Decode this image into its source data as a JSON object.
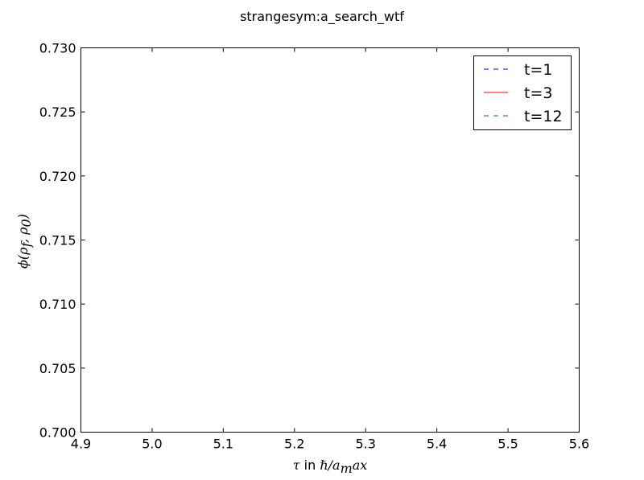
{
  "chart_data": {
    "type": "line",
    "title": "strangesym:a_search_wtf",
    "xlabel": "τ in ℏ/a_max",
    "ylabel": "ϕ(ρ_f, ρ_0)",
    "xlim": [
      4.9,
      5.6
    ],
    "ylim": [
      0.7,
      0.73
    ],
    "x_ticks": [
      "4.9",
      "5.0",
      "5.1",
      "5.2",
      "5.3",
      "5.4",
      "5.5",
      "5.6"
    ],
    "y_ticks": [
      "0.700",
      "0.705",
      "0.710",
      "0.715",
      "0.720",
      "0.725",
      "0.730"
    ],
    "x_tick_values": [
      4.9,
      5.0,
      5.1,
      5.2,
      5.3,
      5.4,
      5.5,
      5.6
    ],
    "y_tick_values": [
      0.7,
      0.705,
      0.71,
      0.715,
      0.72,
      0.725,
      0.73
    ],
    "grid": false,
    "legend_position": "top-right",
    "series": [
      {
        "name": "t=1",
        "color": "#0000ff",
        "linestyle": "dashed",
        "x": [],
        "y": []
      },
      {
        "name": "t=3",
        "color": "#ff0000",
        "linestyle": "solid",
        "x": [],
        "y": []
      },
      {
        "name": "t=12",
        "color": "#008000",
        "linestyle": "dashed",
        "x": [],
        "y": []
      }
    ]
  }
}
